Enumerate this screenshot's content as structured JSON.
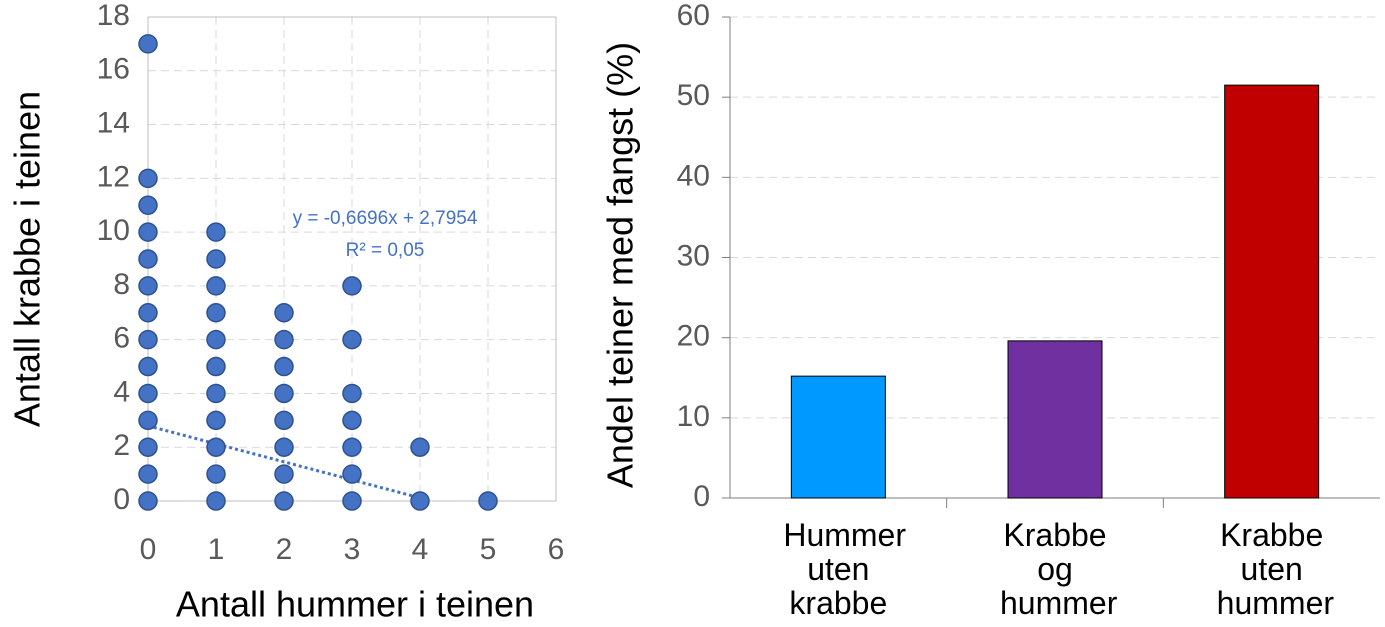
{
  "chart_data": [
    {
      "type": "scatter",
      "xlabel": "Antall hummer i teinen",
      "ylabel": "Antall krabbe i teinen",
      "color": "#4472c4",
      "grid": true,
      "x": [
        0,
        0,
        0,
        0,
        0,
        0,
        0,
        0,
        0,
        0,
        0,
        0,
        0,
        0,
        1,
        1,
        1,
        1,
        1,
        1,
        1,
        1,
        1,
        1,
        1,
        2,
        2,
        2,
        2,
        2,
        2,
        2,
        2,
        3,
        3,
        3,
        3,
        3,
        3,
        3,
        4,
        4,
        5
      ],
      "values": [
        0,
        1,
        2,
        3,
        4,
        5,
        6,
        7,
        8,
        9,
        10,
        11,
        12,
        17,
        0,
        1,
        2,
        3,
        4,
        5,
        6,
        7,
        8,
        9,
        10,
        0,
        1,
        2,
        3,
        4,
        5,
        6,
        7,
        0,
        1,
        2,
        3,
        4,
        6,
        8,
        0,
        2,
        0
      ],
      "xlim": [
        0,
        6
      ],
      "xticks": [
        0,
        1,
        2,
        3,
        4,
        5,
        6
      ],
      "ylim": [
        0,
        18
      ],
      "yticks": [
        0,
        2,
        4,
        6,
        8,
        10,
        12,
        14,
        16,
        18
      ],
      "trendline": {
        "slope": -0.6696,
        "intercept": 2.7954,
        "equation": "y = -0,6696x + 2,7954",
        "r2_label": "R² = 0,05"
      }
    },
    {
      "type": "bar",
      "ylabel": "Andel teiner med fangst (%)",
      "grid": true,
      "categories": [
        "Hummer uten krabbe",
        "Krabbe og hummer",
        "Krabbe uten hummer"
      ],
      "series": [
        {
          "values": [
            15.2,
            19.6,
            51.5
          ],
          "colors": [
            "#0099ff",
            "#7030a0",
            "#c00000"
          ]
        }
      ],
      "ylim": [
        0,
        60
      ],
      "yticks": [
        0,
        10,
        20,
        30,
        40,
        50,
        60
      ]
    }
  ]
}
